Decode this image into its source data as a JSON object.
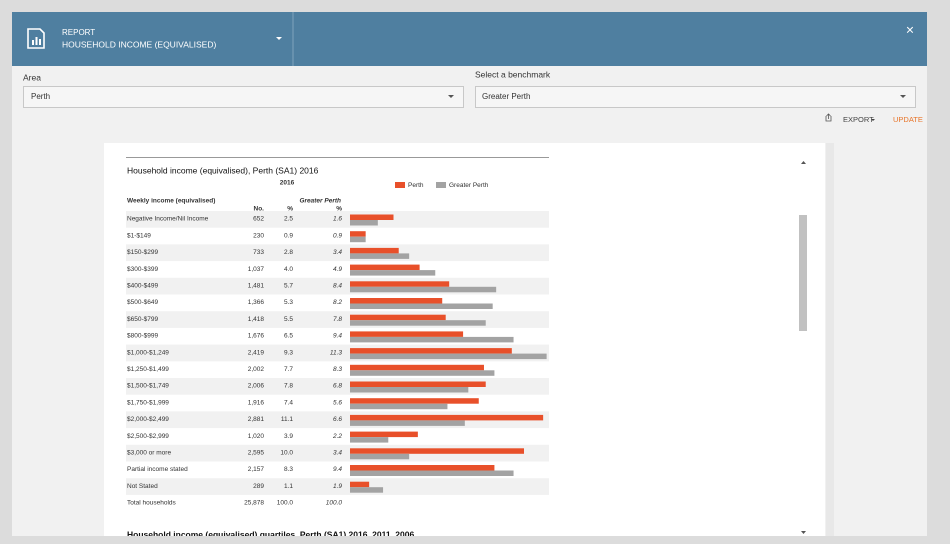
{
  "header": {
    "kicker": "REPORT",
    "title": "HOUSEHOLD INCOME (EQUIVALISED)"
  },
  "controls": {
    "area_label": "Area",
    "area_value": "Perth",
    "benchmark_label": "Select a benchmark",
    "benchmark_value": "Greater Perth",
    "export": "EXPORT",
    "update": "UPDATE"
  },
  "report": {
    "title": "Household income (equivalised), Perth (SA1) 2016",
    "year": "2016",
    "legend": [
      {
        "name": "Perth",
        "color": "#e8502a"
      },
      {
        "name": "Greater Perth",
        "color": "#a3a3a3"
      }
    ],
    "column_header": "Weekly income (equivalised)",
    "benchmark_header": "Greater Perth",
    "no_header": "No.",
    "pct_header": "%",
    "benchmark_pct_header": "%",
    "rows": [
      {
        "label": "Negative Income/Nil Income",
        "no": "652",
        "pct": 2.5,
        "benchmark_pct": 1.6
      },
      {
        "label": "$1-$149",
        "no": "230",
        "pct": 0.9,
        "benchmark_pct": 0.9
      },
      {
        "label": "$150-$299",
        "no": "733",
        "pct": 2.8,
        "benchmark_pct": 3.4
      },
      {
        "label": "$300-$399",
        "no": "1,037",
        "pct": {
          "value": 4,
          "label": "4.0"
        },
        "benchmark_pct": 4.9
      },
      {
        "label": "$400-$499",
        "no": "1,481",
        "pct": 5.7,
        "benchmark_pct": 8.4
      },
      {
        "label": "$500-$649",
        "no": "1,366",
        "pct": 5.3,
        "benchmark_pct": 8.2
      },
      {
        "label": "$650-$799",
        "no": "1,418",
        "pct": 5.5,
        "benchmark_pct": 7.8
      },
      {
        "label": "$800-$999",
        "no": "1,676",
        "pct": 6.5,
        "benchmark_pct": 9.4
      },
      {
        "label": "$1,000-$1,249",
        "no": "2,419",
        "pct": 9.3,
        "benchmark_pct": 11.3
      },
      {
        "label": "$1,250-$1,499",
        "no": "2,002",
        "pct": 7.7,
        "benchmark_pct": 8.3
      },
      {
        "label": "$1,500-$1,749",
        "no": "2,006",
        "pct": 7.8,
        "benchmark_pct": 6.8
      },
      {
        "label": "$1,750-$1,999",
        "no": "1,916",
        "pct": 7.4,
        "benchmark_pct": 5.6
      },
      {
        "label": "$2,000-$2,499",
        "no": "2,881",
        "pct": 11.1,
        "benchmark_pct": 6.6
      },
      {
        "label": "$2,500-$2,999",
        "no": "1,020",
        "pct": 3.9,
        "benchmark_pct": 2.2
      },
      {
        "label": "$3,000 or more",
        "no": "2,595",
        "pct": {
          "value": 10,
          "label": "10.0"
        },
        "benchmark_pct": 3.4
      },
      {
        "label": "Partial income stated",
        "no": "2,157",
        "pct": 8.3,
        "benchmark_pct": 9.4
      },
      {
        "label": "Not Stated",
        "no": "289",
        "pct": 1.1,
        "benchmark_pct": 1.9
      },
      {
        "label": "Total households",
        "no": "25,878",
        "pct": {
          "value": 100,
          "label": "100.0"
        },
        "benchmark_pct": {
          "value": 100,
          "label": "100.0"
        }
      }
    ],
    "next_title": "Household income (equivalised) quartiles, Perth (SA1) 2016, 2011, 2006"
  }
}
